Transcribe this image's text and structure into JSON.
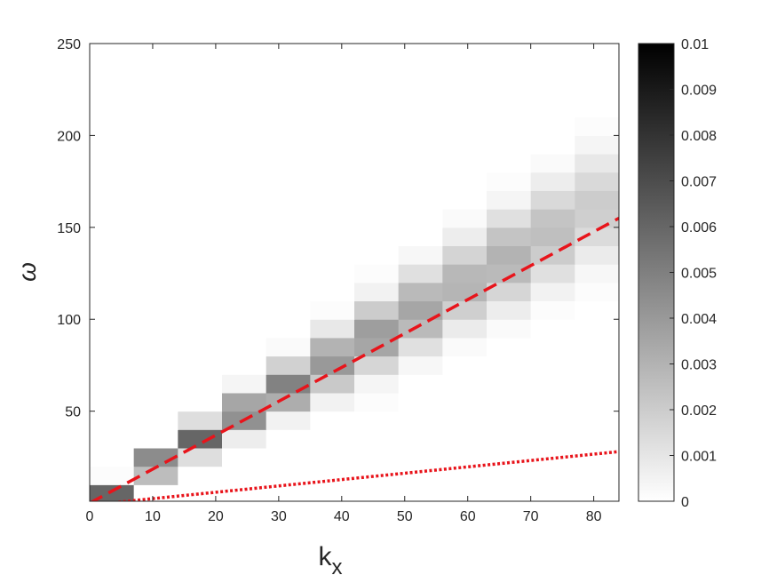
{
  "chart_data": {
    "type": "heatmap",
    "xlabel": {
      "base": "k",
      "subscript": "x"
    },
    "ylabel": "ω",
    "xlim": [
      0,
      84
    ],
    "ylim": [
      1,
      250
    ],
    "xticks": [
      0,
      10,
      20,
      30,
      40,
      50,
      60,
      70,
      80
    ],
    "yticks": [
      50,
      100,
      150,
      200,
      250
    ],
    "xbins": [
      0,
      7,
      14,
      21,
      28,
      35,
      42,
      49,
      56,
      63,
      70,
      77,
      84
    ],
    "ybins": [
      0,
      10,
      20,
      30,
      40,
      50,
      60,
      70,
      80,
      90,
      100,
      110,
      120,
      130,
      140,
      150,
      160,
      170,
      180,
      190,
      200,
      210,
      220,
      230,
      240,
      250
    ],
    "z": [
      [
        0.006,
        0,
        0,
        0,
        0,
        0,
        0,
        0,
        0,
        0,
        0,
        0
      ],
      [
        0.0001,
        0.0026,
        0,
        0,
        0,
        0,
        0,
        0,
        0,
        0,
        0,
        0
      ],
      [
        0,
        0.0045,
        0.0013,
        0,
        0,
        0,
        0,
        0,
        0,
        0,
        0,
        0
      ],
      [
        0,
        0,
        0.006,
        0.0007,
        0,
        0,
        0,
        0,
        0,
        0,
        0,
        0
      ],
      [
        0,
        0,
        0.0013,
        0.0043,
        0.0005,
        0,
        0,
        0,
        0,
        0,
        0,
        0
      ],
      [
        0,
        0,
        0,
        0.0035,
        0.0032,
        0.0005,
        0.0001,
        0,
        0,
        0,
        0,
        0
      ],
      [
        0,
        0,
        0,
        0.0004,
        0.0049,
        0.0021,
        0.0004,
        0,
        0,
        0,
        0,
        0
      ],
      [
        0,
        0,
        0,
        0,
        0.0018,
        0.004,
        0.0016,
        0.0003,
        0,
        0,
        0,
        0
      ],
      [
        0,
        0,
        0,
        0,
        0.0002,
        0.003,
        0.0035,
        0.0012,
        0.0002,
        0,
        0,
        0
      ],
      [
        0,
        0,
        0,
        0,
        0,
        0.0009,
        0.0038,
        0.0027,
        0.0008,
        0.0002,
        0,
        0
      ],
      [
        0,
        0,
        0,
        0,
        0,
        0.0001,
        0.002,
        0.0035,
        0.0019,
        0.0007,
        0.0001,
        0
      ],
      [
        0,
        0,
        0,
        0,
        0,
        0,
        0.0005,
        0.0027,
        0.0029,
        0.0016,
        0.0005,
        0.0001
      ],
      [
        0,
        0,
        0,
        0,
        0,
        0,
        0.0001,
        0.0012,
        0.0028,
        0.0027,
        0.0012,
        0.0003
      ],
      [
        0,
        0,
        0,
        0,
        0,
        0,
        0,
        0.0003,
        0.0017,
        0.003,
        0.002,
        0.0008
      ],
      [
        0,
        0,
        0,
        0,
        0,
        0,
        0,
        0,
        0.0007,
        0.0023,
        0.0025,
        0.0014
      ],
      [
        0,
        0,
        0,
        0,
        0,
        0,
        0,
        0,
        0.0002,
        0.0012,
        0.0023,
        0.0019
      ],
      [
        0,
        0,
        0,
        0,
        0,
        0,
        0,
        0,
        0,
        0.0004,
        0.0015,
        0.002
      ],
      [
        0,
        0,
        0,
        0,
        0,
        0,
        0,
        0,
        0,
        0.0001,
        0.0007,
        0.0015
      ],
      [
        0,
        0,
        0,
        0,
        0,
        0,
        0,
        0,
        0,
        0,
        0.0002,
        0.0009
      ],
      [
        0,
        0,
        0,
        0,
        0,
        0,
        0,
        0,
        0,
        0,
        0,
        0.0004
      ],
      [
        0,
        0,
        0,
        0,
        0,
        0,
        0,
        0,
        0,
        0,
        0,
        0.0001
      ],
      [
        0,
        0,
        0,
        0,
        0,
        0,
        0,
        0,
        0,
        0,
        0,
        0
      ],
      [
        0,
        0,
        0,
        0,
        0,
        0,
        0,
        0,
        0,
        0,
        0,
        0
      ],
      [
        0,
        0,
        0,
        0,
        0,
        0,
        0,
        0,
        0,
        0,
        0,
        0
      ],
      [
        0,
        0,
        0,
        0,
        0,
        0,
        0,
        0,
        0,
        0,
        0,
        0
      ]
    ],
    "colormap": "gray",
    "clim": [
      0,
      0.01
    ],
    "cticks": [
      0,
      0.001,
      0.002,
      0.003,
      0.004,
      0.005,
      0.006,
      0.007,
      0.008,
      0.009,
      0.01
    ],
    "lines": [
      {
        "color": "#e8141b",
        "dash": "dashed",
        "x": [
          0,
          84
        ],
        "values": [
          0,
          155
        ]
      },
      {
        "color": "#e8141b",
        "dash": "dotted",
        "x": [
          3,
          84
        ],
        "values": [
          0,
          28
        ]
      }
    ]
  }
}
